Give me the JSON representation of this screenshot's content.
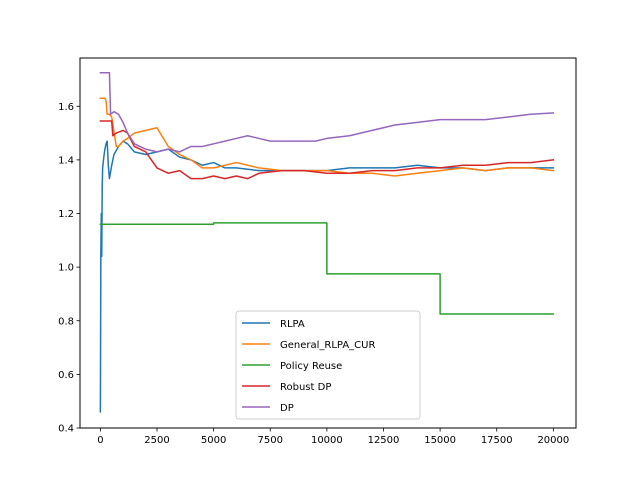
{
  "chart_data": {
    "type": "line",
    "title": "",
    "xlabel": "",
    "ylabel": "",
    "xlim": [
      -900,
      21000
    ],
    "ylim": [
      0.4,
      1.78
    ],
    "xticks": [
      0,
      2500,
      5000,
      7500,
      10000,
      12500,
      15000,
      17500,
      20000
    ],
    "xtick_labels": [
      "0",
      "2500",
      "5000",
      "7500",
      "10000",
      "12500",
      "15000",
      "17500",
      "20000"
    ],
    "yticks": [
      0.4,
      0.6,
      0.8,
      1.0,
      1.2,
      1.4,
      1.6
    ],
    "ytick_labels": [
      "0.4",
      "0.6",
      "0.8",
      "1.0",
      "1.2",
      "1.4",
      "1.6"
    ],
    "grid": false,
    "legend_position": "lower center",
    "series": [
      {
        "name": "RLPA",
        "color": "#1f77b4",
        "x": [
          0,
          20,
          40,
          60,
          80,
          100,
          150,
          200,
          250,
          300,
          350,
          400,
          500,
          600,
          800,
          1000,
          1200,
          1500,
          2000,
          2500,
          3000,
          3500,
          4000,
          4500,
          5000,
          5500,
          6000,
          7000,
          8000,
          9000,
          10000,
          11000,
          12000,
          13000,
          14000,
          15000,
          16000,
          17000,
          18000,
          19000,
          20000
        ],
        "y": [
          0.46,
          1.05,
          1.2,
          1.04,
          1.3,
          1.37,
          1.41,
          1.44,
          1.46,
          1.47,
          1.38,
          1.33,
          1.38,
          1.42,
          1.45,
          1.47,
          1.46,
          1.43,
          1.42,
          1.43,
          1.44,
          1.41,
          1.4,
          1.38,
          1.39,
          1.37,
          1.37,
          1.36,
          1.36,
          1.36,
          1.36,
          1.37,
          1.37,
          1.37,
          1.38,
          1.37,
          1.37,
          1.36,
          1.37,
          1.37,
          1.37
        ]
      },
      {
        "name": "General_RLPA_CUR",
        "color": "#ff7f0e",
        "x": [
          0,
          100,
          200,
          250,
          300,
          400,
          500,
          700,
          800,
          1000,
          1200,
          1500,
          2000,
          2500,
          3000,
          3500,
          4000,
          4500,
          5000,
          5500,
          6000,
          7000,
          8000,
          9000,
          10000,
          11000,
          12000,
          13000,
          14000,
          15000,
          16000,
          17000,
          18000,
          19000,
          20000
        ],
        "y": [
          1.63,
          1.63,
          1.63,
          1.62,
          1.57,
          1.57,
          1.56,
          1.45,
          1.45,
          1.47,
          1.48,
          1.5,
          1.51,
          1.52,
          1.45,
          1.42,
          1.4,
          1.37,
          1.37,
          1.38,
          1.39,
          1.37,
          1.36,
          1.36,
          1.36,
          1.35,
          1.35,
          1.34,
          1.35,
          1.36,
          1.37,
          1.36,
          1.37,
          1.37,
          1.36
        ]
      },
      {
        "name": "Policy Reuse",
        "color": "#2ca02c",
        "x": [
          0,
          100,
          5000,
          5000,
          10000,
          10000,
          15000,
          15000,
          20000
        ],
        "y": [
          1.16,
          1.16,
          1.16,
          1.165,
          1.165,
          0.975,
          0.975,
          0.825,
          0.825
        ]
      },
      {
        "name": "Robust DP",
        "color": "#d62728",
        "x": [
          0,
          500,
          550,
          700,
          1000,
          1200,
          1500,
          2000,
          2500,
          3000,
          3500,
          4000,
          4500,
          5000,
          5500,
          6000,
          6500,
          7000,
          8000,
          9000,
          10000,
          11000,
          12000,
          13000,
          14000,
          15000,
          16000,
          17000,
          18000,
          19000,
          20000
        ],
        "y": [
          1.545,
          1.545,
          1.49,
          1.5,
          1.51,
          1.5,
          1.45,
          1.43,
          1.37,
          1.35,
          1.36,
          1.33,
          1.33,
          1.34,
          1.33,
          1.34,
          1.33,
          1.35,
          1.36,
          1.36,
          1.35,
          1.35,
          1.36,
          1.36,
          1.37,
          1.37,
          1.38,
          1.38,
          1.39,
          1.39,
          1.4
        ]
      },
      {
        "name": "DP",
        "color": "#9467bd",
        "x": [
          0,
          400,
          450,
          600,
          800,
          1000,
          1200,
          1500,
          2000,
          2500,
          3000,
          3500,
          4000,
          4500,
          5000,
          5500,
          6000,
          6500,
          7000,
          7500,
          8000,
          8500,
          9000,
          9500,
          10000,
          11000,
          12000,
          13000,
          14000,
          15000,
          16000,
          17000,
          18000,
          19000,
          20000
        ],
        "y": [
          1.725,
          1.725,
          1.57,
          1.58,
          1.57,
          1.54,
          1.5,
          1.46,
          1.44,
          1.43,
          1.44,
          1.43,
          1.45,
          1.45,
          1.46,
          1.47,
          1.48,
          1.49,
          1.48,
          1.47,
          1.47,
          1.47,
          1.47,
          1.47,
          1.48,
          1.49,
          1.51,
          1.53,
          1.54,
          1.55,
          1.55,
          1.55,
          1.56,
          1.57,
          1.575
        ]
      }
    ]
  }
}
